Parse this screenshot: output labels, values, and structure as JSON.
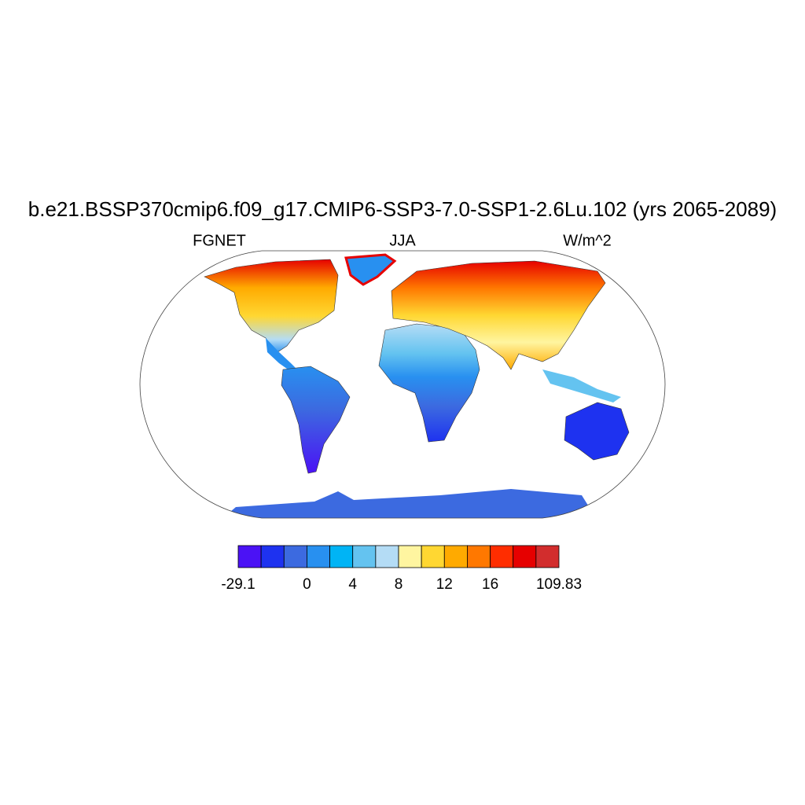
{
  "map": {
    "title": "b.e21.BSSP370cmip6.f09_g17.CMIP6-SSP3-7.0-SSP1-2.6Lu.102 (yrs 2065-2089)",
    "left_label": "FGNET",
    "center_label": "JJA",
    "right_label": "W/m^2",
    "colorbar": {
      "colors": [
        "#4b12f5",
        "#1e32f0",
        "#3c6ae0",
        "#2890f0",
        "#00b4f5",
        "#64c3f0",
        "#b4dcf5",
        "#fff5a0",
        "#ffd732",
        "#ffaa00",
        "#ff7800",
        "#ff2d00",
        "#e60000",
        "#d22d2d"
      ],
      "labels": [
        -29.1,
        0,
        4,
        8,
        12,
        16,
        109.83
      ]
    }
  }
}
